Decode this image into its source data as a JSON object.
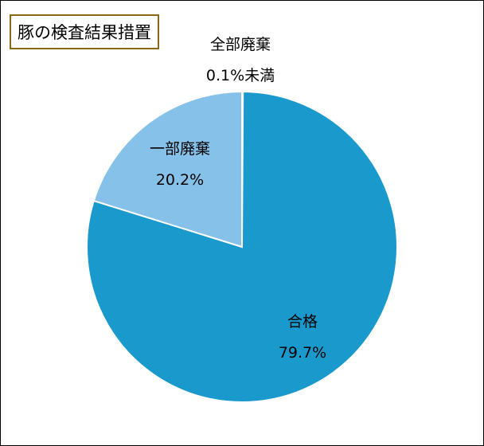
{
  "chart_data": {
    "type": "pie",
    "title": "豚の検査結果措置",
    "slices": [
      {
        "name": "全部廃棄",
        "value": 0.1,
        "value_label": "0.1%未満",
        "color": "#1F77B4"
      },
      {
        "name": "合格",
        "value": 79.7,
        "value_label": "79.7%",
        "color": "#1A99CC"
      },
      {
        "name": "一部廃棄",
        "value": 20.2,
        "value_label": "20.2%",
        "color": "#85C1E9"
      }
    ],
    "legend": "none"
  }
}
